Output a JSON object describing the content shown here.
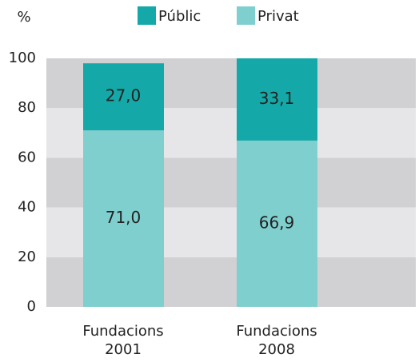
{
  "chart_data": {
    "type": "stacked_bar",
    "y_label": "%",
    "categories": [
      [
        "Fundacions",
        "2001"
      ],
      [
        "Fundacions",
        "2008"
      ]
    ],
    "series": [
      {
        "name": "Públic",
        "color": "#14a9a8",
        "values": [
          27.0,
          33.1
        ],
        "value_labels": [
          "27,0",
          "33,1"
        ]
      },
      {
        "name": "Privat",
        "color": "#80cfcf",
        "values": [
          71.0,
          66.9
        ],
        "value_labels": [
          "71,0",
          "66,9"
        ]
      }
    ],
    "ylim": [
      0,
      100
    ],
    "yticks": [
      0,
      20,
      40,
      60,
      80,
      100
    ]
  }
}
